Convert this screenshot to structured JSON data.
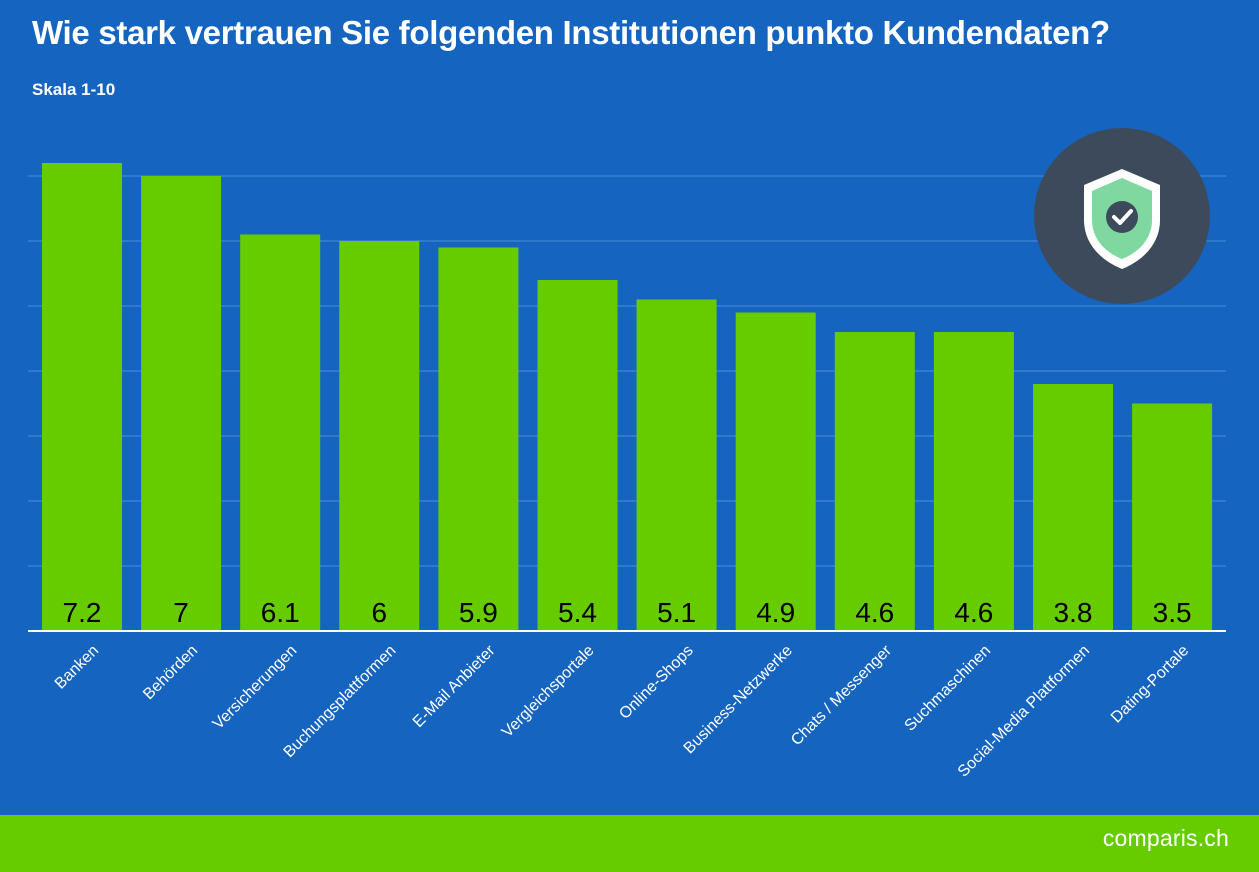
{
  "title": "Wie stark vertrauen Sie folgenden Institutionen punkto Kundendaten?",
  "subtitle": "Skala 1-10",
  "brand": "comparis.ch",
  "colors": {
    "background": "#1565c0",
    "bar": "#66cc00",
    "footer": "#66cc00",
    "badge_circle": "#3d4a5c",
    "shield": "#7fd8a0"
  },
  "icons": {
    "badge": "shield-check-icon"
  },
  "chart_data": {
    "type": "bar",
    "categories": [
      "Banken",
      "Behörden",
      "Versicherungen",
      "Buchungsplattformen",
      "E-Mail Anbieter",
      "Vergleichsportale",
      "Online-Shops",
      "Business-Netzwerke",
      "Chats / Messenger",
      "Suchmaschinen",
      "Social-Media Plattformen",
      "Dating-Portale"
    ],
    "values": [
      7.2,
      7,
      6.1,
      6,
      5.9,
      5.4,
      5.1,
      4.9,
      4.6,
      4.6,
      3.8,
      3.5
    ],
    "value_labels": [
      "7.2",
      "7",
      "6.1",
      "6",
      "5.9",
      "5.4",
      "5.1",
      "4.9",
      "4.6",
      "4.6",
      "3.8",
      "3.5"
    ],
    "title": "Wie stark vertrauen Sie folgenden Institutionen punkto Kundendaten?",
    "subtitle": "Skala 1-10",
    "xlabel": "",
    "ylabel": "",
    "ylim": [
      0,
      7
    ],
    "grid": true,
    "data_labels": "inside-bottom"
  }
}
